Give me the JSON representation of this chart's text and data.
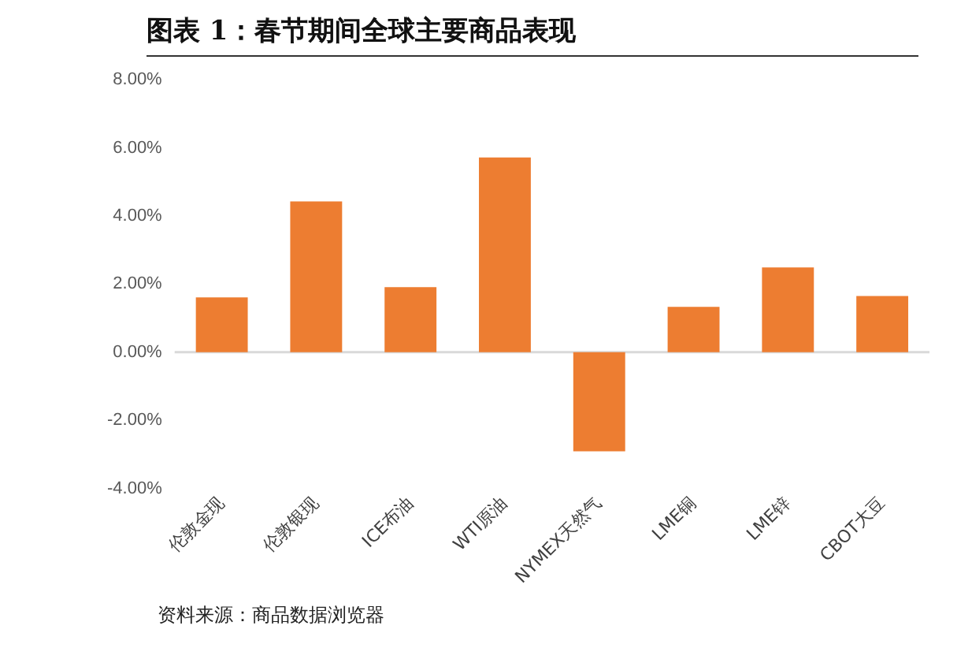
{
  "chart_data": {
    "type": "bar",
    "title": "图表 1：春节期间全球主要商品表现",
    "categories": [
      "伦敦金现",
      "伦敦银现",
      "ICE布油",
      "WTI原油",
      "NYMEX天然气",
      "LME铜",
      "LME锌",
      "CBOT大豆"
    ],
    "values": [
      1.61,
      4.43,
      1.91,
      5.72,
      -2.91,
      1.33,
      2.49,
      1.65
    ],
    "color": "#ed7d31",
    "ylim": [
      -4,
      8
    ],
    "yticks": [
      {
        "value": -4,
        "label": "-4.00%"
      },
      {
        "value": -2,
        "label": "-2.00%"
      },
      {
        "value": 0,
        "label": "0.00%"
      },
      {
        "value": 2,
        "label": "2.00%"
      },
      {
        "value": 4,
        "label": "4.00%"
      },
      {
        "value": 6,
        "label": "6.00%"
      },
      {
        "value": 8,
        "label": "8.00%"
      }
    ],
    "grid": false,
    "legend": false,
    "ref_lines": [
      {
        "axis": "y",
        "value": 0,
        "color": "#d9d9d9"
      }
    ],
    "annotations": [
      "资料来源：商品数据浏览器"
    ]
  }
}
